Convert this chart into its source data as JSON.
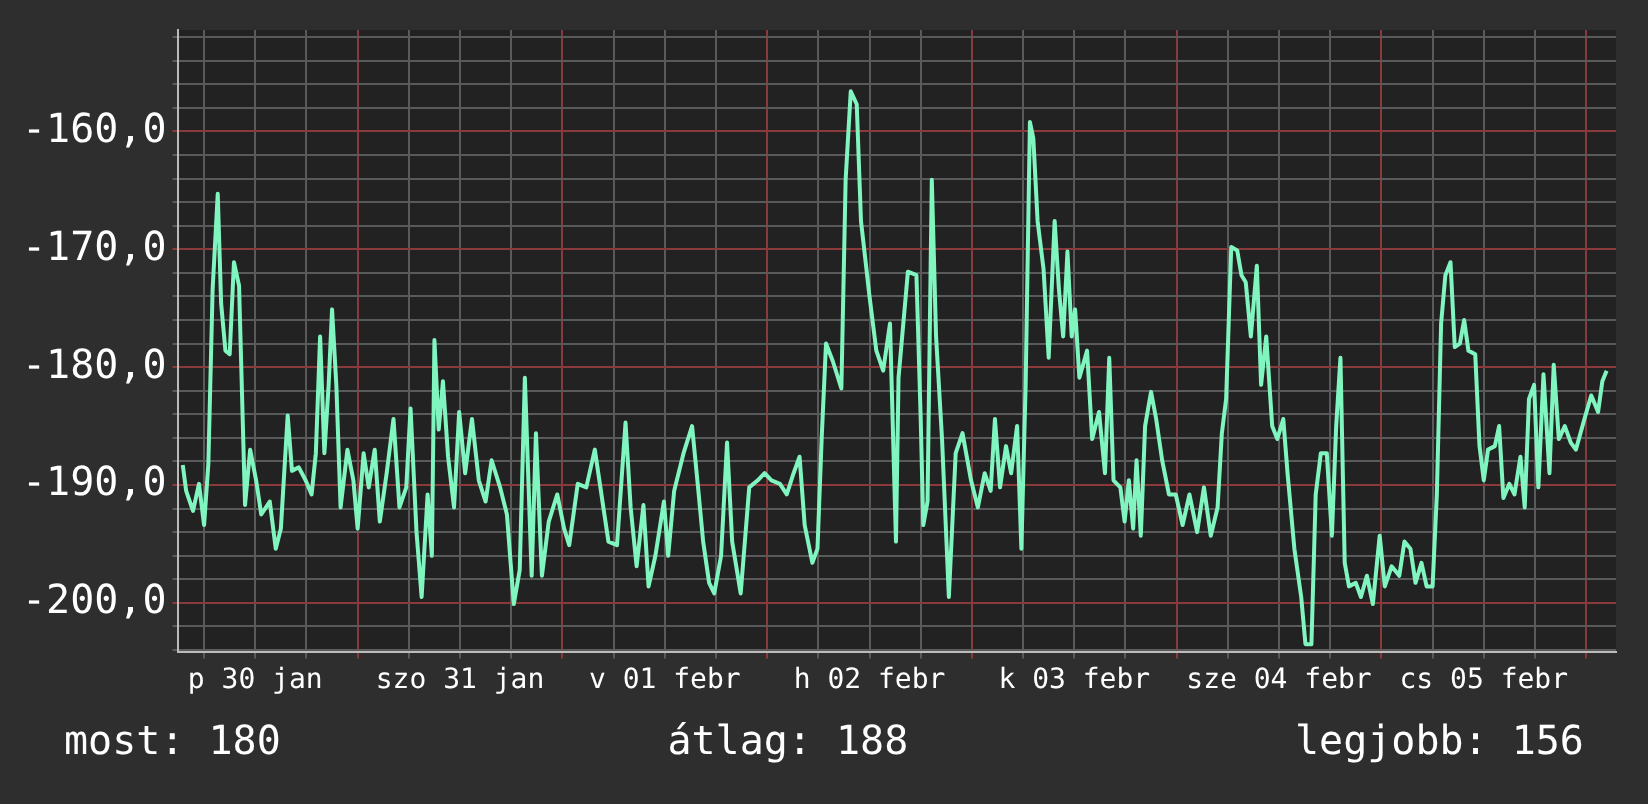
{
  "chart_data": {
    "type": "line",
    "color": "#80f5c0",
    "legend": false,
    "grid": true,
    "marker": "none",
    "line_style": "solid",
    "xlim": [
      "--01-30T03:00",
      "--02-06T03:30"
    ],
    "xticks": [
      {
        "value": "--01-30T06:00",
        "label": null
      },
      {
        "value": "--01-30T12:00",
        "label": "p 30 jan"
      },
      {
        "value": "--01-30T18:00",
        "label": null
      },
      {
        "value": "--01-31T00:00",
        "label": null
      },
      {
        "value": "--01-31T06:00",
        "label": null
      },
      {
        "value": "--01-31T12:00",
        "label": "szo 31 jan"
      },
      {
        "value": "--01-31T18:00",
        "label": null
      },
      {
        "value": "--02-01T00:00",
        "label": null
      },
      {
        "value": "--02-01T06:00",
        "label": null
      },
      {
        "value": "--02-01T12:00",
        "label": "v 01 febr"
      },
      {
        "value": "--02-01T18:00",
        "label": null
      },
      {
        "value": "--02-02T00:00",
        "label": null
      },
      {
        "value": "--02-02T06:00",
        "label": null
      },
      {
        "value": "--02-02T12:00",
        "label": "h 02 febr"
      },
      {
        "value": "--02-02T18:00",
        "label": null
      },
      {
        "value": "--02-03T00:00",
        "label": null
      },
      {
        "value": "--02-03T06:00",
        "label": null
      },
      {
        "value": "--02-03T12:00",
        "label": "k 03 febr"
      },
      {
        "value": "--02-03T18:00",
        "label": null
      },
      {
        "value": "--02-04T00:00",
        "label": null
      },
      {
        "value": "--02-04T06:00",
        "label": null
      },
      {
        "value": "--02-04T12:00",
        "label": "sze 04 febr"
      },
      {
        "value": "--02-04T18:00",
        "label": null
      },
      {
        "value": "--02-05T00:00",
        "label": null
      },
      {
        "value": "--02-05T06:00",
        "label": null
      },
      {
        "value": "--02-05T12:00",
        "label": "cs 05 febr"
      },
      {
        "value": "--02-05T18:00",
        "label": null
      },
      {
        "value": "--02-06T00:00",
        "label": null
      }
    ],
    "ylim": [
      -204.2,
      -151.4
    ],
    "yticks": [
      {
        "value": -204,
        "label": null
      },
      {
        "value": -202,
        "label": null
      },
      {
        "value": -200,
        "label": "-200,0"
      },
      {
        "value": -198,
        "label": null
      },
      {
        "value": -196,
        "label": null
      },
      {
        "value": -194,
        "label": null
      },
      {
        "value": -192,
        "label": null
      },
      {
        "value": -190,
        "label": "-190,0"
      },
      {
        "value": -188,
        "label": null
      },
      {
        "value": -186,
        "label": null
      },
      {
        "value": -184,
        "label": null
      },
      {
        "value": -182,
        "label": null
      },
      {
        "value": -180,
        "label": "-180,0"
      },
      {
        "value": -178,
        "label": null
      },
      {
        "value": -176,
        "label": null
      },
      {
        "value": -174,
        "label": null
      },
      {
        "value": -172,
        "label": null
      },
      {
        "value": -170,
        "label": "-170,0"
      },
      {
        "value": -168,
        "label": null
      },
      {
        "value": -166,
        "label": null
      },
      {
        "value": -164,
        "label": null
      },
      {
        "value": -162,
        "label": null
      },
      {
        "value": -160,
        "label": "-160,0"
      },
      {
        "value": -158,
        "label": null
      },
      {
        "value": -156,
        "label": null
      },
      {
        "value": -154,
        "label": null
      },
      {
        "value": -152,
        "label": null
      }
    ],
    "x": [
      "--01-30T03:30",
      "--01-30T03:54",
      "--01-30T04:42",
      "--01-30T05:24",
      "--01-30T06:00",
      "--01-30T06:30",
      "--01-30T07:00",
      "--01-30T07:36",
      "--01-30T08:00",
      "--01-30T08:30",
      "--01-30T09:00",
      "--01-30T09:30",
      "--01-30T10:06",
      "--01-30T10:48",
      "--01-30T11:24",
      "--01-30T12:06",
      "--01-30T12:42",
      "--01-30T13:42",
      "--01-30T14:24",
      "--01-30T15:00",
      "--01-30T15:48",
      "--01-30T16:18",
      "--01-30T17:06",
      "--01-30T17:54",
      "--01-30T18:36",
      "--01-30T19:06",
      "--01-30T19:36",
      "--01-30T20:06",
      "--01-30T20:36",
      "--01-30T21:00",
      "--01-30T21:30",
      "--01-30T22:00",
      "--01-30T22:48",
      "--01-30T23:30",
      "--01-31T00:00",
      "--01-31T00:42",
      "--01-31T01:18",
      "--01-31T02:00",
      "--01-31T02:36",
      "--01-31T03:24",
      "--01-31T04:12",
      "--01-31T04:54",
      "--01-31T05:42",
      "--01-31T06:12",
      "--01-31T06:54",
      "--01-31T07:30",
      "--01-31T08:12",
      "--01-31T08:42",
      "--01-31T09:00",
      "--01-31T09:30",
      "--01-31T10:00",
      "--01-31T10:36",
      "--01-31T11:18",
      "--01-31T11:54",
      "--01-31T12:36",
      "--01-31T13:24",
      "--01-31T14:12",
      "--01-31T15:00",
      "--01-31T15:42",
      "--01-31T16:42",
      "--01-31T17:30",
      "--01-31T18:18",
      "--01-31T19:00",
      "--01-31T19:36",
      "--01-31T20:24",
      "--01-31T20:54",
      "--01-31T21:36",
      "--01-31T22:24",
      "--01-31T23:24",
      "--02-01T00:12",
      "--02-01T00:48",
      "--02-01T01:48",
      "--02-01T02:48",
      "--02-01T03:48",
      "--02-01T04:48",
      "--02-01T05:24",
      "--02-01T06:24",
      "--02-01T07:24",
      "--02-01T08:00",
      "--02-01T08:42",
      "--02-01T09:30",
      "--02-01T10:06",
      "--02-01T10:54",
      "--02-01T11:54",
      "--02-01T12:24",
      "--02-01T13:06",
      "--02-01T14:12",
      "--02-01T15:12",
      "--02-01T15:54",
      "--02-01T16:30",
      "--02-01T17:12",
      "--02-01T17:48",
      "--02-01T18:36",
      "--02-01T19:18",
      "--02-01T19:54",
      "--02-01T20:54",
      "--02-01T21:54",
      "--02-01T22:54",
      "--02-01T23:42",
      "--02-02T00:30",
      "--02-02T01:30",
      "--02-02T02:18",
      "--02-02T03:06",
      "--02-02T03:48",
      "--02-02T04:24",
      "--02-02T05:18",
      "--02-02T05:54",
      "--02-02T06:24",
      "--02-02T06:54",
      "--02-02T07:42",
      "--02-02T08:42",
      "--02-02T09:12",
      "--02-02T09:48",
      "--02-02T10:30",
      "--02-02T11:00",
      "--02-02T12:00",
      "--02-02T12:48",
      "--02-02T13:36",
      "--02-02T14:24",
      "--02-02T15:06",
      "--02-02T15:24",
      "--02-02T16:30",
      "--02-02T17:30",
      "--02-02T18:00",
      "--02-02T18:18",
      "--02-02T18:48",
      "--02-02T19:18",
      "--02-02T19:48",
      "--02-02T20:30",
      "--02-02T21:18",
      "--02-02T22:06",
      "--02-02T22:54",
      "--02-02T23:54",
      "--02-03T00:42",
      "--02-03T01:30",
      "--02-03T02:12",
      "--02-03T02:42",
      "--02-03T03:18",
      "--02-03T04:00",
      "--02-03T04:36",
      "--02-03T05:18",
      "--02-03T05:48",
      "--02-03T06:18",
      "--02-03T06:48",
      "--02-03T07:12",
      "--02-03T07:42",
      "--02-03T08:24",
      "--02-03T09:00",
      "--02-03T09:42",
      "--02-03T10:12",
      "--02-03T10:42",
      "--02-03T11:12",
      "--02-03T11:42",
      "--02-03T12:06",
      "--02-03T12:36",
      "--02-03T13:30",
      "--02-03T14:06",
      "--02-03T14:54",
      "--02-03T15:36",
      "--02-03T16:06",
      "--02-03T16:36",
      "--02-03T17:24",
      "--02-03T17:54",
      "--02-03T18:24",
      "--02-03T18:54",
      "--02-03T19:18",
      "--02-03T19:48",
      "--02-03T20:18",
      "--02-03T21:00",
      "--02-03T21:36",
      "--02-03T22:18",
      "--02-03T23:06",
      "--02-03T23:54",
      "--02-04T00:42",
      "--02-04T01:30",
      "--02-04T02:24",
      "--02-04T03:12",
      "--02-04T04:00",
      "--02-04T04:48",
      "--02-04T05:18",
      "--02-04T05:48",
      "--02-04T06:24",
      "--02-04T07:06",
      "--02-04T07:36",
      "--02-04T08:06",
      "--02-04T08:42",
      "--02-04T09:24",
      "--02-04T09:54",
      "--02-04T10:30",
      "--02-04T11:12",
      "--02-04T11:48",
      "--02-04T12:30",
      "--02-04T13:00",
      "--02-04T13:48",
      "--02-04T14:36",
      "--02-04T15:06",
      "--02-04T15:48",
      "--02-04T16:18",
      "--02-04T16:54",
      "--02-04T17:36",
      "--02-04T18:12",
      "--02-04T18:42",
      "--02-04T19:12",
      "--02-04T19:42",
      "--02-04T20:12",
      "--02-04T21:00",
      "--02-04T21:36",
      "--02-04T22:18",
      "--02-04T23:00",
      "--02-04T23:48",
      "--02-05T00:24",
      "--02-05T01:12",
      "--02-05T02:06",
      "--02-05T02:42",
      "--02-05T03:24",
      "--02-05T04:00",
      "--02-05T04:42",
      "--02-05T05:18",
      "--02-05T06:00",
      "--02-05T06:30",
      "--02-05T07:00",
      "--02-05T07:30",
      "--02-05T08:06",
      "--02-05T08:36",
      "--02-05T09:12",
      "--02-05T09:42",
      "--02-05T10:12",
      "--02-05T11:00",
      "--02-05T11:30",
      "--02-05T12:00",
      "--02-05T12:30",
      "--02-05T13:18",
      "--02-05T13:48",
      "--02-05T14:18",
      "--02-05T15:00",
      "--02-05T15:36",
      "--02-05T16:18",
      "--02-05T16:48",
      "--02-05T17:18",
      "--02-05T17:54",
      "--02-05T18:24",
      "--02-05T19:00",
      "--02-05T19:42",
      "--02-05T20:12",
      "--02-05T20:48",
      "--02-05T21:30",
      "--02-05T22:12",
      "--02-05T22:48",
      "--02-05T23:48",
      "--02-06T00:36",
      "--02-06T01:24",
      "--02-06T01:54",
      "--02-06T02:24"
    ],
    "values": [
      -188.3,
      -190.5,
      -192.2,
      -189.9,
      -193.4,
      -188.2,
      -173.4,
      -165.3,
      -174.6,
      -178.6,
      -178.9,
      -171.1,
      -173.1,
      -191.7,
      -187.0,
      -189.6,
      -192.5,
      -191.4,
      -195.4,
      -193.7,
      -184.1,
      -188.8,
      -188.5,
      -189.6,
      -190.8,
      -187.3,
      -177.4,
      -187.3,
      -181.5,
      -175.1,
      -181.5,
      -191.9,
      -187.0,
      -189.6,
      -193.7,
      -187.3,
      -190.2,
      -187.0,
      -193.1,
      -189.0,
      -184.4,
      -191.9,
      -190.2,
      -183.5,
      -194.0,
      -199.5,
      -190.8,
      -196.0,
      -177.7,
      -185.3,
      -181.2,
      -187.6,
      -191.9,
      -183.8,
      -189.0,
      -184.4,
      -189.6,
      -191.4,
      -187.9,
      -190.2,
      -192.5,
      -200.1,
      -197.2,
      -180.9,
      -197.7,
      -185.6,
      -197.7,
      -193.1,
      -190.8,
      -193.7,
      -195.1,
      -189.9,
      -190.2,
      -187.0,
      -191.9,
      -194.8,
      -195.1,
      -184.7,
      -191.9,
      -196.9,
      -191.7,
      -198.6,
      -196.0,
      -191.4,
      -196.0,
      -190.5,
      -187.3,
      -185.0,
      -190.2,
      -194.8,
      -198.3,
      -199.2,
      -196.0,
      -186.4,
      -194.8,
      -199.2,
      -190.2,
      -189.6,
      -189.0,
      -189.6,
      -189.9,
      -190.8,
      -189.0,
      -187.6,
      -193.4,
      -196.6,
      -195.4,
      -185.9,
      -178.0,
      -179.5,
      -181.8,
      -164.1,
      -156.6,
      -157.7,
      -167.6,
      -174.0,
      -178.6,
      -180.3,
      -176.3,
      -194.8,
      -180.9,
      -171.9,
      -172.2,
      -184.4,
      -193.4,
      -191.4,
      -164.1,
      -177.4,
      -186.1,
      -199.5,
      -187.3,
      -185.6,
      -189.6,
      -191.9,
      -189.0,
      -190.5,
      -184.4,
      -190.2,
      -186.7,
      -189.0,
      -185.0,
      -195.4,
      -181.5,
      -159.2,
      -160.6,
      -167.6,
      -171.7,
      -179.2,
      -167.6,
      -173.4,
      -177.4,
      -170.2,
      -177.4,
      -175.1,
      -180.9,
      -178.6,
      -186.1,
      -183.8,
      -189.0,
      -179.2,
      -189.6,
      -190.2,
      -193.1,
      -189.6,
      -193.7,
      -187.9,
      -194.3,
      -185.0,
      -182.1,
      -184.4,
      -187.9,
      -190.8,
      -190.8,
      -193.4,
      -190.8,
      -194.0,
      -190.2,
      -194.3,
      -191.9,
      -185.6,
      -182.7,
      -169.8,
      -170.1,
      -172.2,
      -172.8,
      -177.4,
      -171.4,
      -181.5,
      -177.4,
      -185.0,
      -186.1,
      -184.4,
      -189.0,
      -195.4,
      -199.5,
      -203.5,
      -203.5,
      -190.8,
      -187.3,
      -187.3,
      -194.3,
      -185.0,
      -179.2,
      -196.6,
      -198.6,
      -198.3,
      -199.5,
      -197.7,
      -200.1,
      -194.3,
      -198.6,
      -196.9,
      -197.7,
      -194.8,
      -195.4,
      -198.3,
      -196.6,
      -198.6,
      -198.6,
      -190.8,
      -176.3,
      -172.2,
      -171.1,
      -178.3,
      -178.0,
      -176.0,
      -178.6,
      -178.9,
      -186.7,
      -189.6,
      -187.0,
      -186.7,
      -185.0,
      -191.1,
      -189.9,
      -190.8,
      -187.6,
      -191.9,
      -182.7,
      -181.5,
      -190.2,
      -180.6,
      -189.0,
      -179.8,
      -186.1,
      -185.0,
      -186.4,
      -187.0,
      -184.4,
      -182.4,
      -183.8,
      -181.2,
      -180.3
    ],
    "annotations": [
      "most: 180",
      "átlag: 188",
      "legjobb: 156"
    ]
  }
}
